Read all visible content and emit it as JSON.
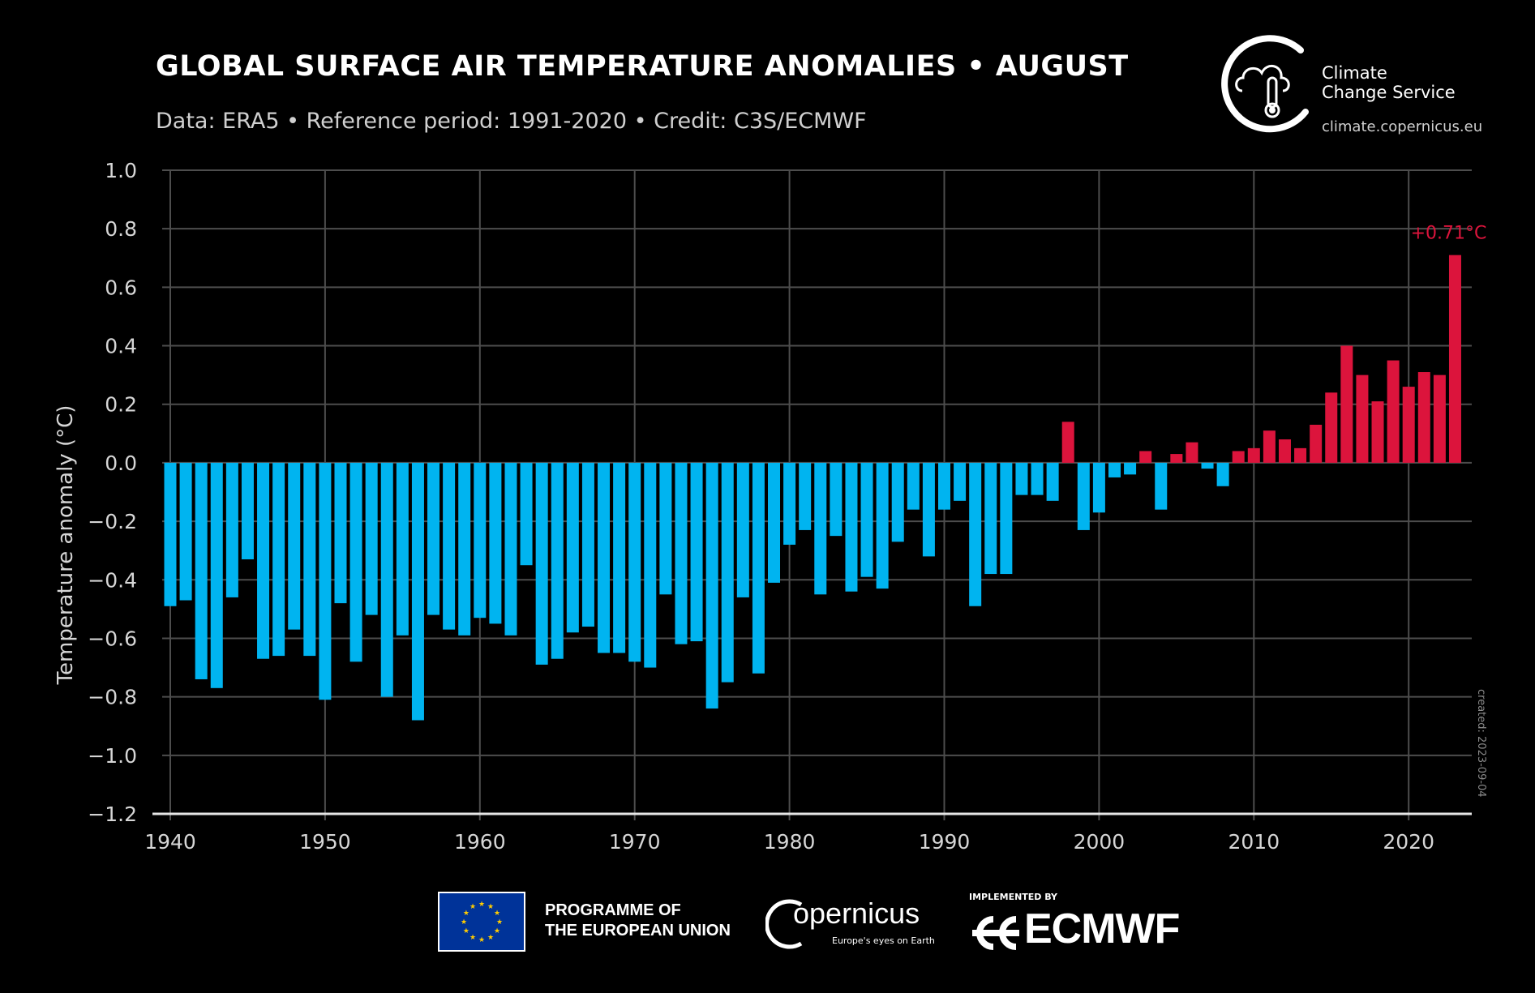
{
  "header": {
    "title": "GLOBAL SURFACE AIR TEMPERATURE ANOMALIES • AUGUST",
    "subtitle": "Data: ERA5 • Reference period: 1991-2020 • Credit: C3S/ECMWF"
  },
  "c3s": {
    "line1": "Climate",
    "line2": "Change Service",
    "url": "climate.copernicus.eu"
  },
  "colors": {
    "background": "#000000",
    "negative": "#00b4f0",
    "positive": "#dc143c",
    "grid": "#4d4d4d",
    "tick_text": "#d6d6d6"
  },
  "chart_data": {
    "type": "bar",
    "title": "GLOBAL SURFACE AIR TEMPERATURE ANOMALIES • AUGUST",
    "ylabel": "Temperature anomaly (°C)",
    "xlabel": "",
    "ylim": [
      -1.2,
      1.0
    ],
    "xlim": [
      1939,
      2024
    ],
    "yticks": [
      "1.0",
      "0.8",
      "0.6",
      "0.4",
      "0.2",
      "0.0",
      "−0.2",
      "−0.4",
      "−0.6",
      "−0.8",
      "−1.0",
      "−1.2"
    ],
    "ytick_values": [
      1.0,
      0.8,
      0.6,
      0.4,
      0.2,
      0.0,
      -0.2,
      -0.4,
      -0.6,
      -0.8,
      -1.0,
      -1.2
    ],
    "xticks": [
      1940,
      1950,
      1960,
      1970,
      1980,
      1990,
      2000,
      2010,
      2020
    ],
    "grid": true,
    "x": [
      1940,
      1941,
      1942,
      1943,
      1944,
      1945,
      1946,
      1947,
      1948,
      1949,
      1950,
      1951,
      1952,
      1953,
      1954,
      1955,
      1956,
      1957,
      1958,
      1959,
      1960,
      1961,
      1962,
      1963,
      1964,
      1965,
      1966,
      1967,
      1968,
      1969,
      1970,
      1971,
      1972,
      1973,
      1974,
      1975,
      1976,
      1977,
      1978,
      1979,
      1980,
      1981,
      1982,
      1983,
      1984,
      1985,
      1986,
      1987,
      1988,
      1989,
      1990,
      1991,
      1992,
      1993,
      1994,
      1995,
      1996,
      1997,
      1998,
      1999,
      2000,
      2001,
      2002,
      2003,
      2004,
      2005,
      2006,
      2007,
      2008,
      2009,
      2010,
      2011,
      2012,
      2013,
      2014,
      2015,
      2016,
      2017,
      2018,
      2019,
      2020,
      2021,
      2022,
      2023
    ],
    "values": [
      -0.49,
      -0.47,
      -0.74,
      -0.77,
      -0.46,
      -0.33,
      -0.67,
      -0.66,
      -0.57,
      -0.66,
      -0.81,
      -0.48,
      -0.68,
      -0.52,
      -0.8,
      -0.59,
      -0.88,
      -0.52,
      -0.57,
      -0.59,
      -0.53,
      -0.55,
      -0.59,
      -0.35,
      -0.69,
      -0.67,
      -0.58,
      -0.56,
      -0.65,
      -0.65,
      -0.68,
      -0.7,
      -0.45,
      -0.62,
      -0.61,
      -0.84,
      -0.75,
      -0.46,
      -0.72,
      -0.41,
      -0.28,
      -0.23,
      -0.45,
      -0.25,
      -0.44,
      -0.39,
      -0.43,
      -0.27,
      -0.16,
      -0.32,
      -0.16,
      -0.13,
      -0.49,
      -0.38,
      -0.38,
      -0.11,
      -0.11,
      -0.13,
      0.14,
      -0.23,
      -0.17,
      -0.05,
      -0.04,
      0.04,
      -0.16,
      0.03,
      0.07,
      -0.02,
      -0.08,
      0.04,
      0.05,
      0.11,
      0.08,
      0.05,
      0.13,
      0.24,
      0.4,
      0.3,
      0.21,
      0.35,
      0.26,
      0.31,
      0.3,
      0.71
    ],
    "annotation": {
      "x": 2023,
      "text": "+0.71°C"
    },
    "created_note": "created: 2023-09-04"
  },
  "footer": {
    "eu_line1": "PROGRAMME OF",
    "eu_line2": "THE EUROPEAN UNION",
    "copernicus_name": "opernicus",
    "copernicus_tagline": "Europe's eyes on Earth",
    "ecmwf_implemented": "IMPLEMENTED BY",
    "ecmwf_name": "ECMWF"
  }
}
